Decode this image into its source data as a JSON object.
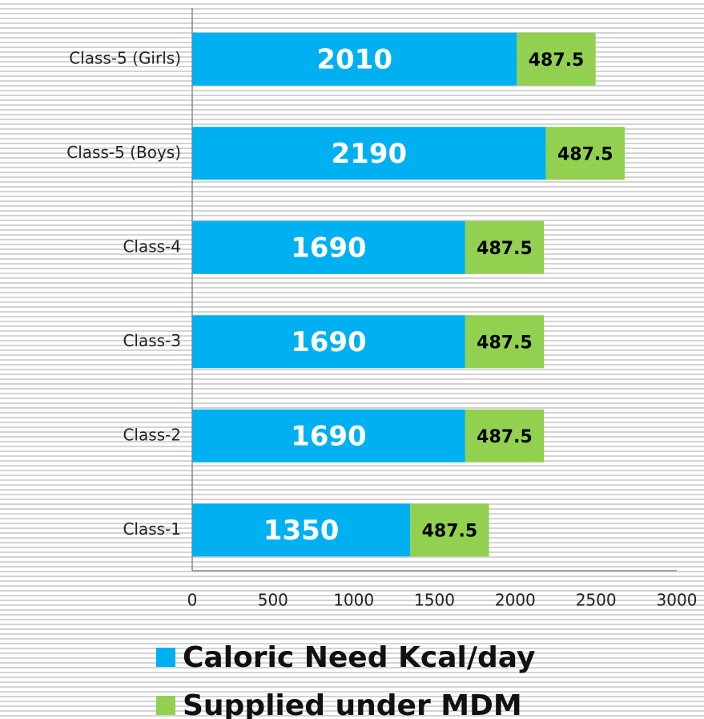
{
  "chart_data": {
    "type": "stacked-bar-horizontal",
    "categories": [
      "Class-5 (Girls)",
      "Class-5 (Boys)",
      "Class-4",
      "Class-3",
      "Class-2",
      "Class-1"
    ],
    "series": [
      {
        "name": "Caloric Need Kcal/day",
        "color": "#00b0f0",
        "values": [
          2010,
          2190,
          1690,
          1690,
          1690,
          1350
        ]
      },
      {
        "name": "Supplied under MDM",
        "color": "#92d050",
        "values": [
          487.5,
          487.5,
          487.5,
          487.5,
          487.5,
          487.5
        ]
      }
    ],
    "xlim": [
      0,
      3000
    ],
    "xticks": [
      0,
      500,
      1000,
      1500,
      2000,
      2500,
      3000
    ],
    "grid": false
  }
}
